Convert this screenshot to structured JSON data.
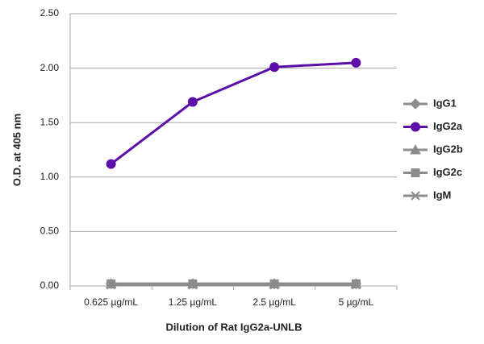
{
  "chart_data": {
    "type": "line",
    "y_label": "O.D. at 405 nm",
    "x_label": "Dilution of Rat IgG2a-UNLB",
    "categories": [
      "0.625 µg/mL",
      "1.25 µg/mL",
      "2.5 µg/mL",
      "5 µg/mL"
    ],
    "series": [
      {
        "name": "IgG1",
        "color": "#8c8c8c",
        "marker": "diamond",
        "values": [
          0.02,
          0.02,
          0.02,
          0.02
        ]
      },
      {
        "name": "IgG2a",
        "color": "#5b0fa8",
        "marker": "circle",
        "values": [
          1.12,
          1.69,
          2.01,
          2.05
        ]
      },
      {
        "name": "IgG2b",
        "color": "#8c8c8c",
        "marker": "triangle",
        "values": [
          0.02,
          0.02,
          0.02,
          0.02
        ]
      },
      {
        "name": "IgG2c",
        "color": "#8c8c8c",
        "marker": "square",
        "values": [
          0.02,
          0.02,
          0.02,
          0.02
        ]
      },
      {
        "name": "IgM",
        "color": "#8c8c8c",
        "marker": "x",
        "values": [
          0.01,
          0.01,
          0.01,
          0.01
        ]
      }
    ],
    "ylim": [
      0,
      2.5
    ],
    "yticks": [
      {
        "value": 0,
        "label": "0.00"
      },
      {
        "value": 0.5,
        "label": "0.50"
      },
      {
        "value": 1,
        "label": "1.00"
      },
      {
        "value": 1.5,
        "label": "1.50"
      },
      {
        "value": 2,
        "label": "2.00"
      },
      {
        "value": 2.5,
        "label": "2.50"
      }
    ],
    "grid": true,
    "legend": "right"
  }
}
